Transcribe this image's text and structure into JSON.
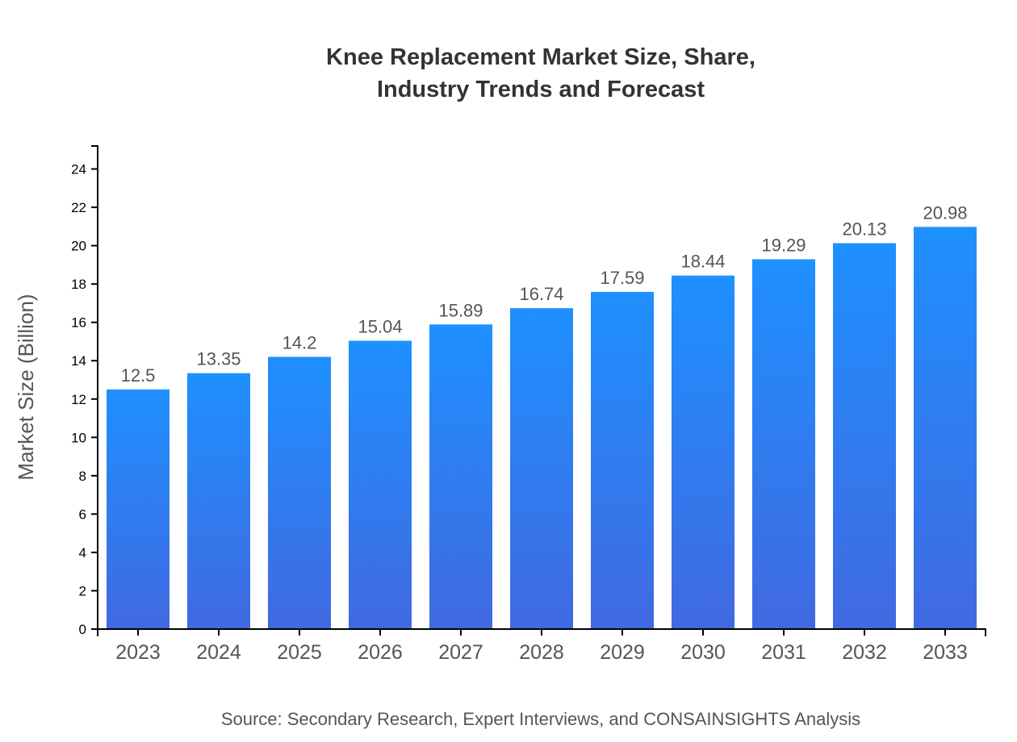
{
  "chart_data": {
    "type": "bar",
    "title_lines": [
      "Knee Replacement Market Size, Share,",
      "Industry Trends and Forecast"
    ],
    "categories": [
      "2023",
      "2024",
      "2025",
      "2026",
      "2027",
      "2028",
      "2029",
      "2030",
      "2031",
      "2032",
      "2033"
    ],
    "values": [
      12.5,
      13.35,
      14.2,
      15.04,
      15.89,
      16.74,
      17.59,
      18.44,
      19.29,
      20.13,
      20.98
    ],
    "value_labels": [
      "12.5",
      "13.35",
      "14.2",
      "15.04",
      "15.89",
      "16.74",
      "17.59",
      "18.44",
      "19.29",
      "20.13",
      "20.98"
    ],
    "xlabel": "",
    "ylabel": "Market Size (Billion)",
    "ylim": [
      0,
      25.2
    ],
    "yticks": [
      0,
      2,
      4,
      6,
      8,
      10,
      12,
      14,
      16,
      18,
      20,
      22,
      24
    ],
    "grid": false,
    "legend": "none",
    "colors": {
      "bar_top": "#1E90FF",
      "bar_bottom": "#4169E1"
    },
    "source": "Source: Secondary Research, Expert Interviews, and CONSAINSIGHTS Analysis"
  }
}
